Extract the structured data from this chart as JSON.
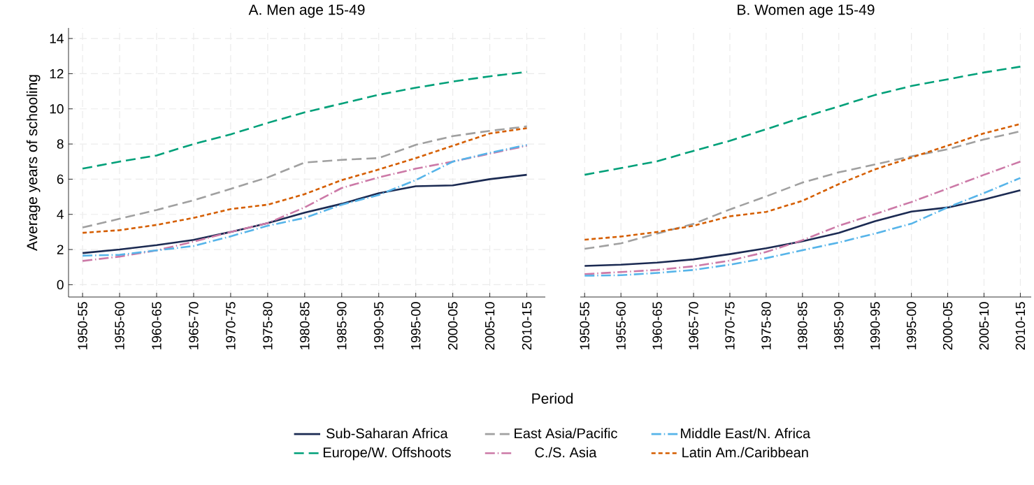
{
  "chart_data": [
    {
      "type": "line",
      "title": "A. Men age 15-49",
      "xlabel": "Period",
      "ylabel": "Average years of schooling",
      "categories": [
        "1950-55",
        "1955-60",
        "1960-65",
        "1965-70",
        "1970-75",
        "1975-80",
        "1980-85",
        "1985-90",
        "1990-95",
        "1995-00",
        "2000-05",
        "2005-10",
        "2010-15"
      ],
      "ylim": [
        -0.7,
        14.6
      ],
      "yticks": [
        0,
        2,
        4,
        6,
        8,
        10,
        12,
        14
      ],
      "grid": true,
      "legend": "bottom",
      "marker": "none",
      "series": [
        {
          "name": "Sub-Saharan Africa",
          "color": "#1b2a52",
          "line_style": "solid",
          "values": [
            1.8,
            2.0,
            2.25,
            2.55,
            3.0,
            3.5,
            4.1,
            4.6,
            5.2,
            5.6,
            5.65,
            6.0,
            6.25
          ]
        },
        {
          "name": "Europe/W. Offshoots",
          "color": "#00a079",
          "line_style": "dashed",
          "values": [
            6.6,
            7.0,
            7.35,
            8.0,
            8.55,
            9.2,
            9.8,
            10.3,
            10.8,
            11.2,
            11.55,
            11.85,
            12.1
          ]
        },
        {
          "name": "East Asia/Pacific",
          "color": "#a0a0a0",
          "line_style": "dashed",
          "values": [
            3.25,
            3.75,
            4.25,
            4.8,
            5.45,
            6.1,
            6.95,
            7.1,
            7.2,
            7.95,
            8.45,
            8.75,
            9.0
          ]
        },
        {
          "name": "C./S. Asia",
          "color": "#cc79a7",
          "line_style": "dashdot",
          "values": [
            1.35,
            1.6,
            1.95,
            2.45,
            3.0,
            3.5,
            4.4,
            5.5,
            6.1,
            6.6,
            7.0,
            7.45,
            7.9
          ]
        },
        {
          "name": "Middle East/N. Africa",
          "color": "#56b4e9",
          "line_style": "dashdot",
          "values": [
            1.65,
            1.7,
            1.95,
            2.2,
            2.75,
            3.35,
            3.8,
            4.55,
            5.1,
            5.95,
            7.0,
            7.5,
            7.95
          ]
        },
        {
          "name": "Latin Am./Caribbean",
          "color": "#d55e00",
          "line_style": "dotted",
          "values": [
            2.95,
            3.1,
            3.4,
            3.8,
            4.3,
            4.55,
            5.15,
            5.95,
            6.55,
            7.2,
            7.9,
            8.6,
            8.9
          ]
        }
      ]
    },
    {
      "type": "line",
      "title": "B. Women age 15-49",
      "categories": [
        "1950-55",
        "1955-60",
        "1960-65",
        "1965-70",
        "1970-75",
        "1975-80",
        "1980-85",
        "1985-90",
        "1990-95",
        "1995-00",
        "2000-05",
        "2005-10",
        "2010-15"
      ],
      "ylim": [
        -0.7,
        14.6
      ],
      "yticks": [
        0,
        2,
        4,
        6,
        8,
        10,
        12,
        14
      ],
      "grid": true,
      "marker": "none",
      "tick_labels": "x",
      "series": [
        {
          "color": "#1b2a52",
          "line_style": "solid",
          "values": [
            1.07,
            1.14,
            1.26,
            1.44,
            1.74,
            2.07,
            2.47,
            2.95,
            3.61,
            4.16,
            4.39,
            4.84,
            5.37
          ]
        },
        {
          "color": "#00a079",
          "line_style": "dashed",
          "values": [
            6.25,
            6.63,
            7.02,
            7.61,
            8.18,
            8.84,
            9.51,
            10.14,
            10.79,
            11.3,
            11.68,
            12.07,
            12.4
          ]
        },
        {
          "color": "#a0a0a0",
          "line_style": "dashed",
          "values": [
            2.04,
            2.35,
            2.91,
            3.46,
            4.28,
            5.02,
            5.81,
            6.39,
            6.84,
            7.3,
            7.7,
            8.26,
            8.72
          ]
        },
        {
          "color": "#cc79a7",
          "line_style": "dashdot",
          "values": [
            0.6,
            0.72,
            0.84,
            1.05,
            1.37,
            1.86,
            2.53,
            3.35,
            4.02,
            4.7,
            5.47,
            6.25,
            7.0
          ]
        },
        {
          "color": "#56b4e9",
          "line_style": "dashdot",
          "values": [
            0.51,
            0.54,
            0.67,
            0.84,
            1.14,
            1.51,
            1.96,
            2.4,
            2.91,
            3.47,
            4.4,
            5.21,
            6.07
          ]
        },
        {
          "color": "#d55e00",
          "line_style": "dotted",
          "values": [
            2.56,
            2.74,
            3.0,
            3.35,
            3.89,
            4.14,
            4.77,
            5.72,
            6.56,
            7.23,
            7.91,
            8.61,
            9.14
          ]
        }
      ]
    }
  ]
}
